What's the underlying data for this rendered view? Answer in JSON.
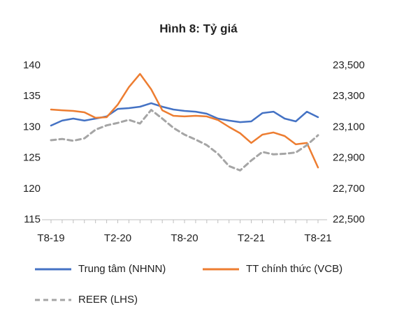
{
  "chart_data": {
    "type": "line",
    "title": "Hình 8: Tỷ giá",
    "categories": [
      "T8-19",
      null,
      null,
      null,
      null,
      null,
      "T2-20",
      null,
      null,
      null,
      null,
      null,
      "T8-20",
      null,
      null,
      null,
      null,
      null,
      "T2-21",
      null,
      null,
      null,
      null,
      null,
      "T8-21"
    ],
    "series": [
      {
        "name": "Trung tâm (NHNN)",
        "color": "#4472c4",
        "axis": "y2",
        "dash": false,
        "values": [
          23111,
          23143,
          23156,
          23143,
          23156,
          23170,
          23219,
          23224,
          23233,
          23256,
          23233,
          23215,
          23206,
          23201,
          23188,
          23156,
          23143,
          23133,
          23138,
          23192,
          23201,
          23156,
          23138,
          23201,
          23165
        ]
      },
      {
        "name": "TT chính thức (VCB)",
        "color": "#ed7d31",
        "axis": "y2",
        "dash": false,
        "values": [
          23215,
          23210,
          23206,
          23197,
          23161,
          23165,
          23247,
          23360,
          23446,
          23346,
          23210,
          23174,
          23170,
          23174,
          23170,
          23147,
          23102,
          23061,
          22998,
          23052,
          23066,
          23043,
          22989,
          22998,
          22839
        ]
      },
      {
        "name": "REER (LHS)",
        "color": "#a5a5a5",
        "axis": "y",
        "dash": true,
        "values": [
          127.9,
          128.1,
          127.8,
          128.2,
          129.6,
          130.3,
          130.7,
          131.2,
          130.6,
          132.8,
          131.4,
          129.9,
          128.8,
          128.0,
          127.1,
          125.7,
          123.7,
          123.0,
          124.6,
          126.0,
          125.6,
          125.7,
          125.9,
          127.1,
          128.7
        ]
      }
    ],
    "ylim": [
      115,
      140
    ],
    "yticks": [
      115,
      120,
      125,
      130,
      135,
      140
    ],
    "y2lim": [
      22500,
      23500
    ],
    "y2ticks": [
      {
        "value": 22500,
        "label": "22,500"
      },
      {
        "value": 22700,
        "label": "22,700"
      },
      {
        "value": 22900,
        "label": "22,900"
      },
      {
        "value": 23100,
        "label": "23,100"
      },
      {
        "value": 23300,
        "label": "23,300"
      },
      {
        "value": 23500,
        "label": "23,500"
      }
    ],
    "grid": false
  }
}
